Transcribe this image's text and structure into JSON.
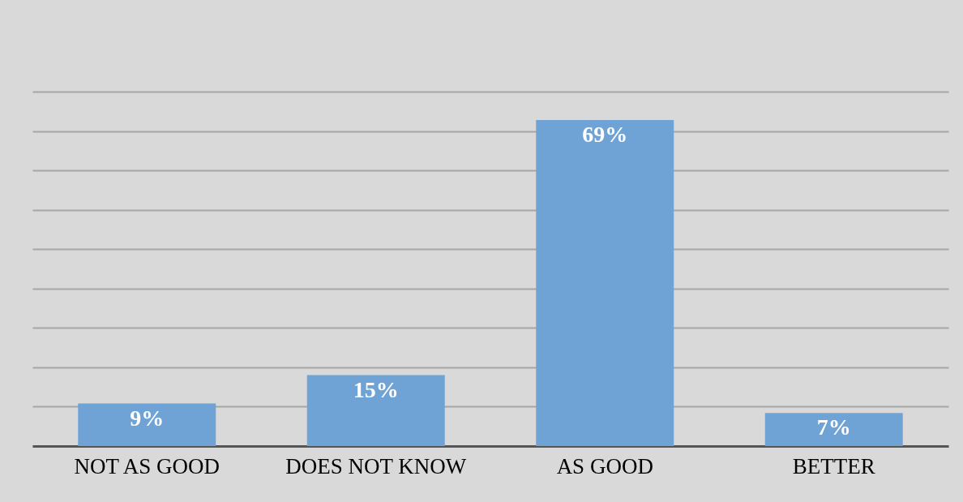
{
  "chart_data": {
    "type": "bar",
    "categories": [
      "NOT AS GOOD",
      "DOES NOT KNOW",
      "AS GOOD",
      "BETTER"
    ],
    "values": [
      9,
      15,
      69,
      7
    ],
    "color": "#6fa3d6",
    "data_labels": true,
    "value_labels": [
      "9%",
      "15%",
      "69%",
      "7%"
    ],
    "ylim": [
      0,
      75
    ],
    "yticks": [
      {
        "value": 0,
        "label": null
      },
      {
        "value": 8.33,
        "label": null
      },
      {
        "value": 16.67,
        "label": null
      },
      {
        "value": 25,
        "label": null
      },
      {
        "value": 33.33,
        "label": null
      },
      {
        "value": 41.67,
        "label": null
      },
      {
        "value": 50,
        "label": null
      },
      {
        "value": 58.33,
        "label": null
      },
      {
        "value": 66.67,
        "label": null
      },
      {
        "value": 75,
        "label": null
      }
    ],
    "grid": "y",
    "tick_labels": "x"
  }
}
